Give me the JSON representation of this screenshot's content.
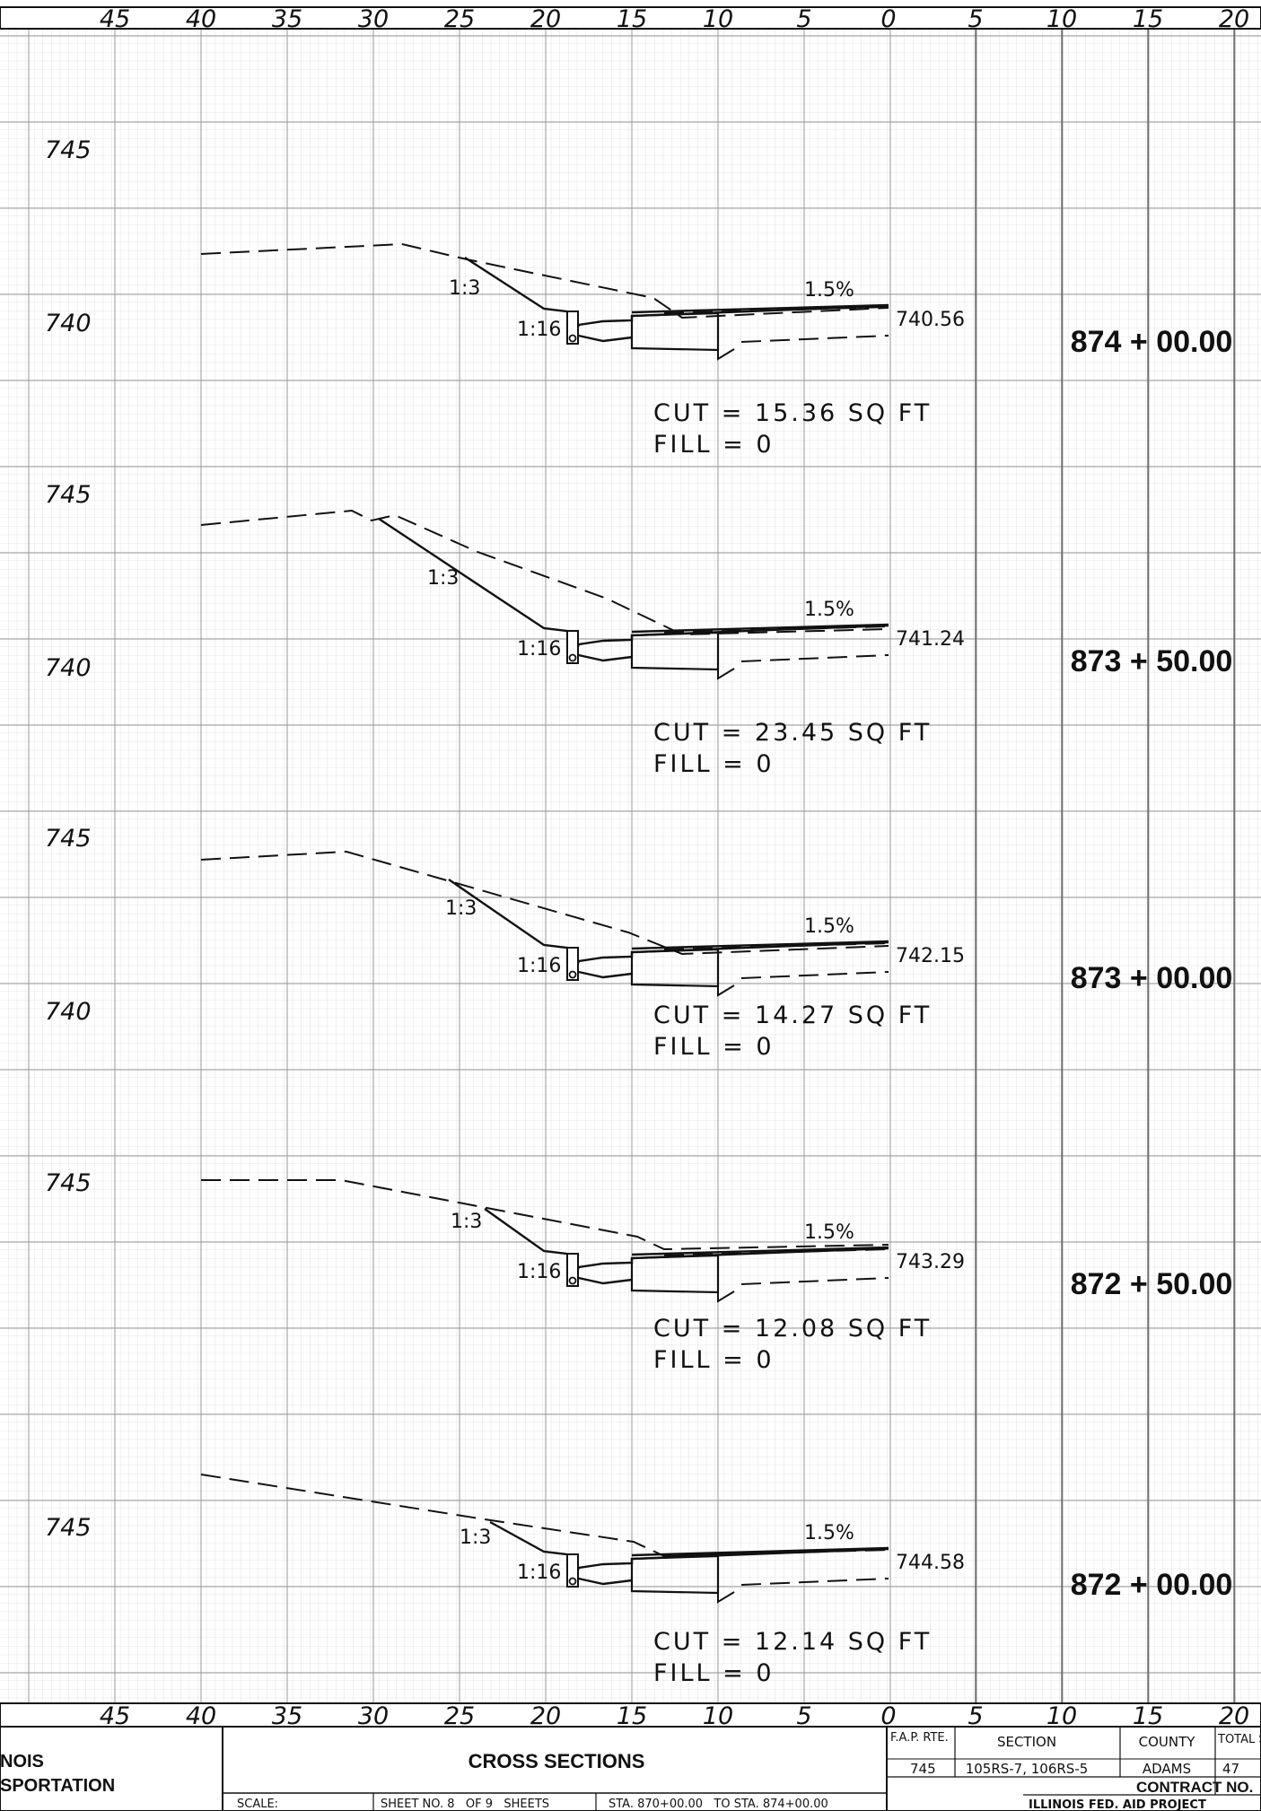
{
  "sheet": {
    "offset_scale_top": [
      "45",
      "40",
      "35",
      "30",
      "25",
      "20",
      "15",
      "10",
      "5",
      "0",
      "5",
      "10",
      "15",
      "20"
    ],
    "offset_scale_bottom": [
      "45",
      "40",
      "35",
      "30",
      "25",
      "20",
      "15",
      "10",
      "5",
      "0",
      "5",
      "10",
      "15",
      "20"
    ]
  },
  "sections": [
    {
      "station": "874 + 00.00",
      "elev_top": "745",
      "elev_bottom": "740",
      "backslope": "1:3",
      "foreslope": "1:16",
      "cross_slope": "1.5%",
      "profile_grade": "740.56",
      "cut": "CUT = 15.36 SQ FT",
      "fill": "FILL = 0"
    },
    {
      "station": "873 + 50.00",
      "elev_top": "745",
      "elev_bottom": "740",
      "backslope": "1:3",
      "foreslope": "1:16",
      "cross_slope": "1.5%",
      "profile_grade": "741.24",
      "cut": "CUT = 23.45 SQ FT",
      "fill": "FILL = 0"
    },
    {
      "station": "873 + 00.00",
      "elev_top": "745",
      "elev_bottom": "740",
      "backslope": "1:3",
      "foreslope": "1:16",
      "cross_slope": "1.5%",
      "profile_grade": "742.15",
      "cut": "CUT = 14.27 SQ FT",
      "fill": "FILL = 0"
    },
    {
      "station": "872 + 50.00",
      "elev_top": "745",
      "elev_bottom": "",
      "backslope": "1:3",
      "foreslope": "1:16",
      "cross_slope": "1.5%",
      "profile_grade": "743.29",
      "cut": "CUT = 12.08 SQ FT",
      "fill": "FILL = 0"
    },
    {
      "station": "872 + 00.00",
      "elev_top": "745",
      "elev_bottom": "",
      "backslope": "1:3",
      "foreslope": "1:16",
      "cross_slope": "1.5%",
      "profile_grade": "744.58",
      "cut": "CUT = 12.14 SQ FT",
      "fill": "FILL = 0"
    }
  ],
  "title_block": {
    "agency_line1": "NOIS",
    "agency_line2": "SPORTATION",
    "title": "CROSS SECTIONS",
    "scale_label": "SCALE:",
    "sheet_no": "SHEET NO. 8   OF 9   SHEETS",
    "sta_range": "STA. 870+00.00   TO STA. 874+00.00",
    "fap_rte_label": "F.A.P. RTE.",
    "fap_rte_value": "745",
    "section_label": "SECTION",
    "section_value": "105RS-7, 106RS-5",
    "county_label": "COUNTY",
    "county_value": "ADAMS",
    "total_sheets_label": "TOTAL SHEETS",
    "total_sheets_value": "47",
    "contract_label": "CONTRACT NO.",
    "project_label": "ILLINOIS FED. AID PROJECT"
  }
}
